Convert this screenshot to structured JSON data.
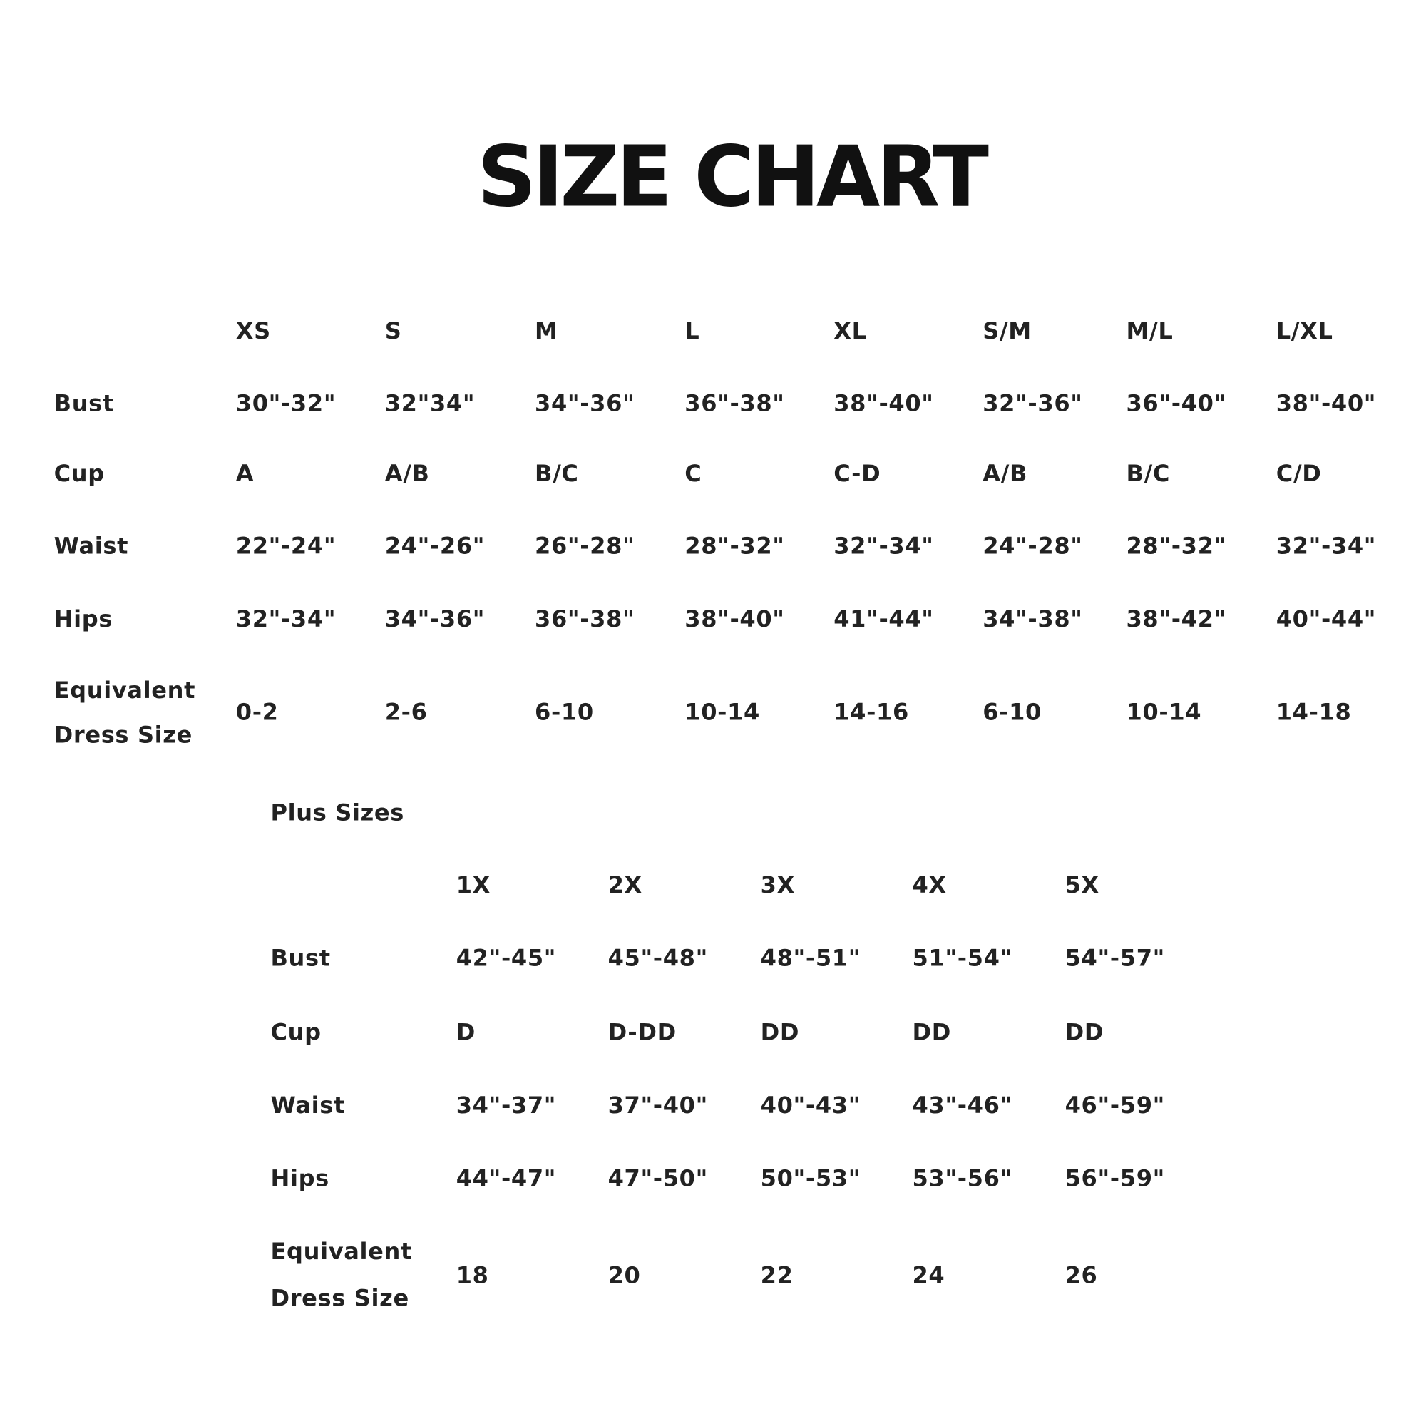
{
  "title": "SIZE CHART",
  "standard": {
    "sizes": [
      "XS",
      "S",
      "M",
      "L",
      "XL",
      "S/M",
      "M/L",
      "L/XL"
    ],
    "rows": [
      {
        "label": "Bust",
        "values": [
          "30\"-32\"",
          "32\"34\"",
          "34\"-36\"",
          "36\"-38\"",
          "38\"-40\"",
          "32\"-36\"",
          "36\"-40\"",
          "38\"-40\""
        ]
      },
      {
        "label": "Cup",
        "values": [
          "A",
          "A/B",
          "B/C",
          "C",
          "C-D",
          "A/B",
          "B/C",
          "C/D"
        ]
      },
      {
        "label": "Waist",
        "values": [
          "22\"-24\"",
          "24\"-26\"",
          "26\"-28\"",
          "28\"-32\"",
          "32\"-34\"",
          "24\"-28\"",
          "28\"-32\"",
          "32\"-34\""
        ]
      },
      {
        "label": "Hips",
        "values": [
          "32\"-34\"",
          "34\"-36\"",
          "36\"-38\"",
          "38\"-40\"",
          "41\"-44\"",
          "34\"-38\"",
          "38\"-42\"",
          "40\"-44\""
        ]
      },
      {
        "label": "Equivalent|Dress Size",
        "values": [
          "0-2",
          "2-6",
          "6-10",
          "10-14",
          "14-16",
          "6-10",
          "10-14",
          "14-18"
        ]
      }
    ]
  },
  "plus": {
    "heading": "Plus Sizes",
    "sizes": [
      "1X",
      "2X",
      "3X",
      "4X",
      "5X"
    ],
    "rows": [
      {
        "label": "Bust",
        "values": [
          "42\"-45\"",
          "45\"-48\"",
          "48\"-51\"",
          "51\"-54\"",
          "54\"-57\""
        ]
      },
      {
        "label": "Cup",
        "values": [
          "D",
          "D-DD",
          "DD",
          "DD",
          "DD"
        ]
      },
      {
        "label": "Waist",
        "values": [
          "34\"-37\"",
          "37\"-40\"",
          "40\"-43\"",
          "43\"-46\"",
          "46\"-59\""
        ]
      },
      {
        "label": "Hips",
        "values": [
          "44\"-47\"",
          "47\"-50\"",
          "50\"-53\"",
          "53\"-56\"",
          "56\"-59\""
        ]
      },
      {
        "label": "Equivalent|Dress Size",
        "values": [
          "18",
          "20",
          "22",
          "24",
          "26"
        ]
      }
    ]
  }
}
